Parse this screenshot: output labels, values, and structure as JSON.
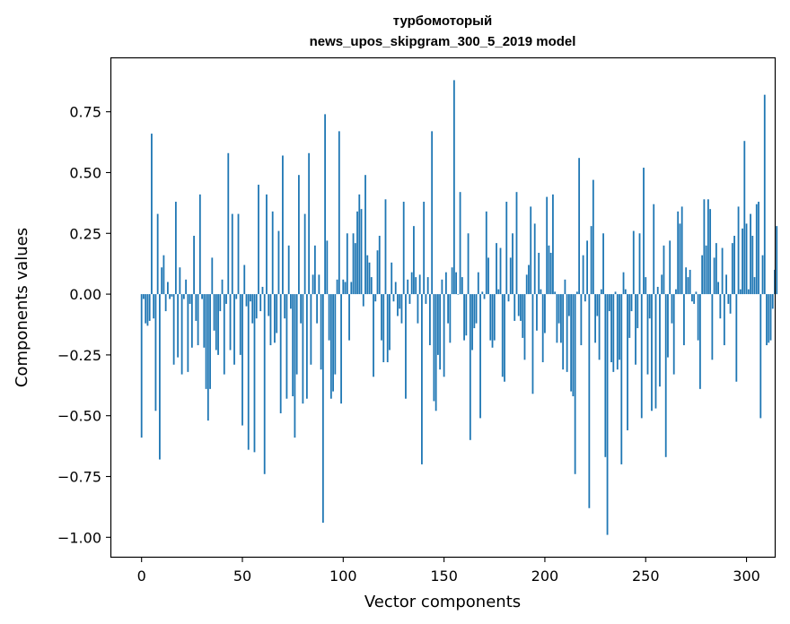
{
  "chart_data": {
    "type": "bar",
    "title": "турбомоторый",
    "subtitle": "news_upos_skipgram_300_5_2019 model",
    "xlabel": "Vector components",
    "ylabel": "Components values",
    "xlim": [
      -15,
      314
    ],
    "ylim": [
      -1.08,
      0.97
    ],
    "xticks": [
      0,
      50,
      100,
      150,
      200,
      250,
      300
    ],
    "yticks": [
      -1.0,
      -0.75,
      -0.5,
      -0.25,
      0.0,
      0.25,
      0.5,
      0.75
    ],
    "ytick_labels": [
      "−1.00",
      "−0.75",
      "−0.50",
      "−0.25",
      "0.00",
      "0.25",
      "0.50",
      "0.75"
    ],
    "xtick_labels": [
      "0",
      "50",
      "100",
      "150",
      "200",
      "250",
      "300"
    ],
    "bar_color": "#1f77b4",
    "grid": false,
    "values": [
      -0.59,
      -0.02,
      -0.12,
      -0.13,
      -0.11,
      0.66,
      -0.1,
      -0.48,
      0.33,
      -0.68,
      0.11,
      0.16,
      -0.07,
      0.05,
      -0.02,
      -0.01,
      -0.29,
      0.38,
      -0.26,
      0.11,
      -0.33,
      -0.02,
      0.06,
      -0.32,
      -0.04,
      -0.22,
      0.24,
      -0.11,
      -0.21,
      0.41,
      -0.02,
      -0.22,
      -0.39,
      -0.52,
      -0.39,
      0.15,
      -0.15,
      -0.23,
      -0.25,
      -0.07,
      0.06,
      -0.33,
      -0.04,
      0.58,
      -0.23,
      0.33,
      -0.29,
      -0.02,
      0.33,
      -0.25,
      -0.54,
      0.12,
      -0.05,
      -0.64,
      -0.03,
      -0.12,
      -0.65,
      -0.1,
      0.45,
      -0.07,
      0.03,
      -0.74,
      0.41,
      -0.09,
      -0.21,
      0.34,
      -0.2,
      -0.16,
      0.26,
      -0.49,
      0.57,
      -0.1,
      -0.43,
      0.2,
      -0.06,
      -0.42,
      -0.59,
      -0.33,
      0.49,
      -0.12,
      -0.45,
      0.33,
      -0.43,
      0.58,
      -0.29,
      0.08,
      0.2,
      -0.12,
      0.08,
      -0.31,
      -0.94,
      0.74,
      0.22,
      -0.19,
      -0.43,
      -0.4,
      -0.33,
      0.06,
      0.67,
      -0.45,
      0.06,
      0.05,
      0.25,
      -0.19,
      0.05,
      0.25,
      0.21,
      0.34,
      0.41,
      0.35,
      -0.05,
      0.49,
      0.16,
      0.13,
      0.07,
      -0.34,
      -0.03,
      0.18,
      0.24,
      -0.19,
      -0.28,
      0.39,
      -0.28,
      -0.23,
      0.13,
      -0.03,
      0.05,
      -0.09,
      -0.06,
      -0.12,
      0.38,
      -0.43,
      0.06,
      -0.04,
      0.09,
      0.28,
      0.07,
      -0.12,
      0.08,
      -0.7,
      0.38,
      -0.04,
      0.07,
      -0.21,
      0.67,
      -0.44,
      -0.48,
      -0.25,
      -0.31,
      0.06,
      -0.34,
      0.09,
      -0.12,
      -0.2,
      0.11,
      0.88,
      0.09,
      0.0,
      0.42,
      0.07,
      -0.19,
      -0.17,
      0.25,
      -0.6,
      -0.23,
      -0.14,
      -0.12,
      0.09,
      -0.51,
      0.01,
      -0.02,
      0.34,
      0.15,
      -0.19,
      -0.22,
      -0.19,
      0.21,
      0.02,
      0.19,
      -0.34,
      -0.36,
      0.38,
      -0.03,
      0.15,
      0.25,
      -0.11,
      0.42,
      -0.09,
      -0.11,
      -0.18,
      -0.27,
      0.08,
      0.12,
      0.36,
      -0.41,
      0.29,
      -0.15,
      0.17,
      0.02,
      -0.28,
      -0.16,
      0.4,
      0.2,
      0.17,
      0.41,
      0.01,
      -0.2,
      -0.12,
      -0.2,
      -0.31,
      0.06,
      -0.32,
      -0.09,
      -0.4,
      -0.42,
      -0.74,
      0.01,
      0.56,
      -0.21,
      0.16,
      -0.03,
      0.22,
      -0.88,
      0.28,
      0.47,
      -0.2,
      -0.09,
      -0.27,
      0.02,
      0.25,
      -0.67,
      -0.99,
      -0.07,
      -0.28,
      -0.32,
      0.01,
      -0.31,
      -0.27,
      -0.7,
      0.09,
      0.02,
      -0.56,
      -0.18,
      -0.07,
      0.26,
      -0.29,
      -0.14,
      0.25,
      -0.51,
      0.52,
      0.07,
      -0.33,
      -0.1,
      -0.48,
      0.37,
      -0.47,
      0.03,
      -0.38,
      0.08,
      0.2,
      -0.67,
      -0.26,
      0.22,
      -0.12,
      -0.33,
      0.02,
      0.34,
      0.29,
      0.36,
      -0.21,
      0.11,
      0.07,
      0.1,
      -0.03,
      -0.04,
      0.01,
      -0.19,
      -0.39,
      0.16,
      0.39,
      0.2,
      0.39,
      0.35,
      -0.27,
      0.15,
      0.21,
      0.05,
      -0.1,
      0.19,
      -0.21,
      0.08,
      -0.04,
      -0.08,
      0.21,
      0.24,
      -0.36,
      0.36,
      0.02,
      0.27,
      0.63,
      0.29,
      0.02,
      0.33,
      0.24,
      0.07,
      0.37,
      0.38,
      -0.51,
      0.16,
      0.82,
      -0.21,
      -0.2,
      -0.19,
      -0.06,
      0.1,
      0.28
    ]
  }
}
